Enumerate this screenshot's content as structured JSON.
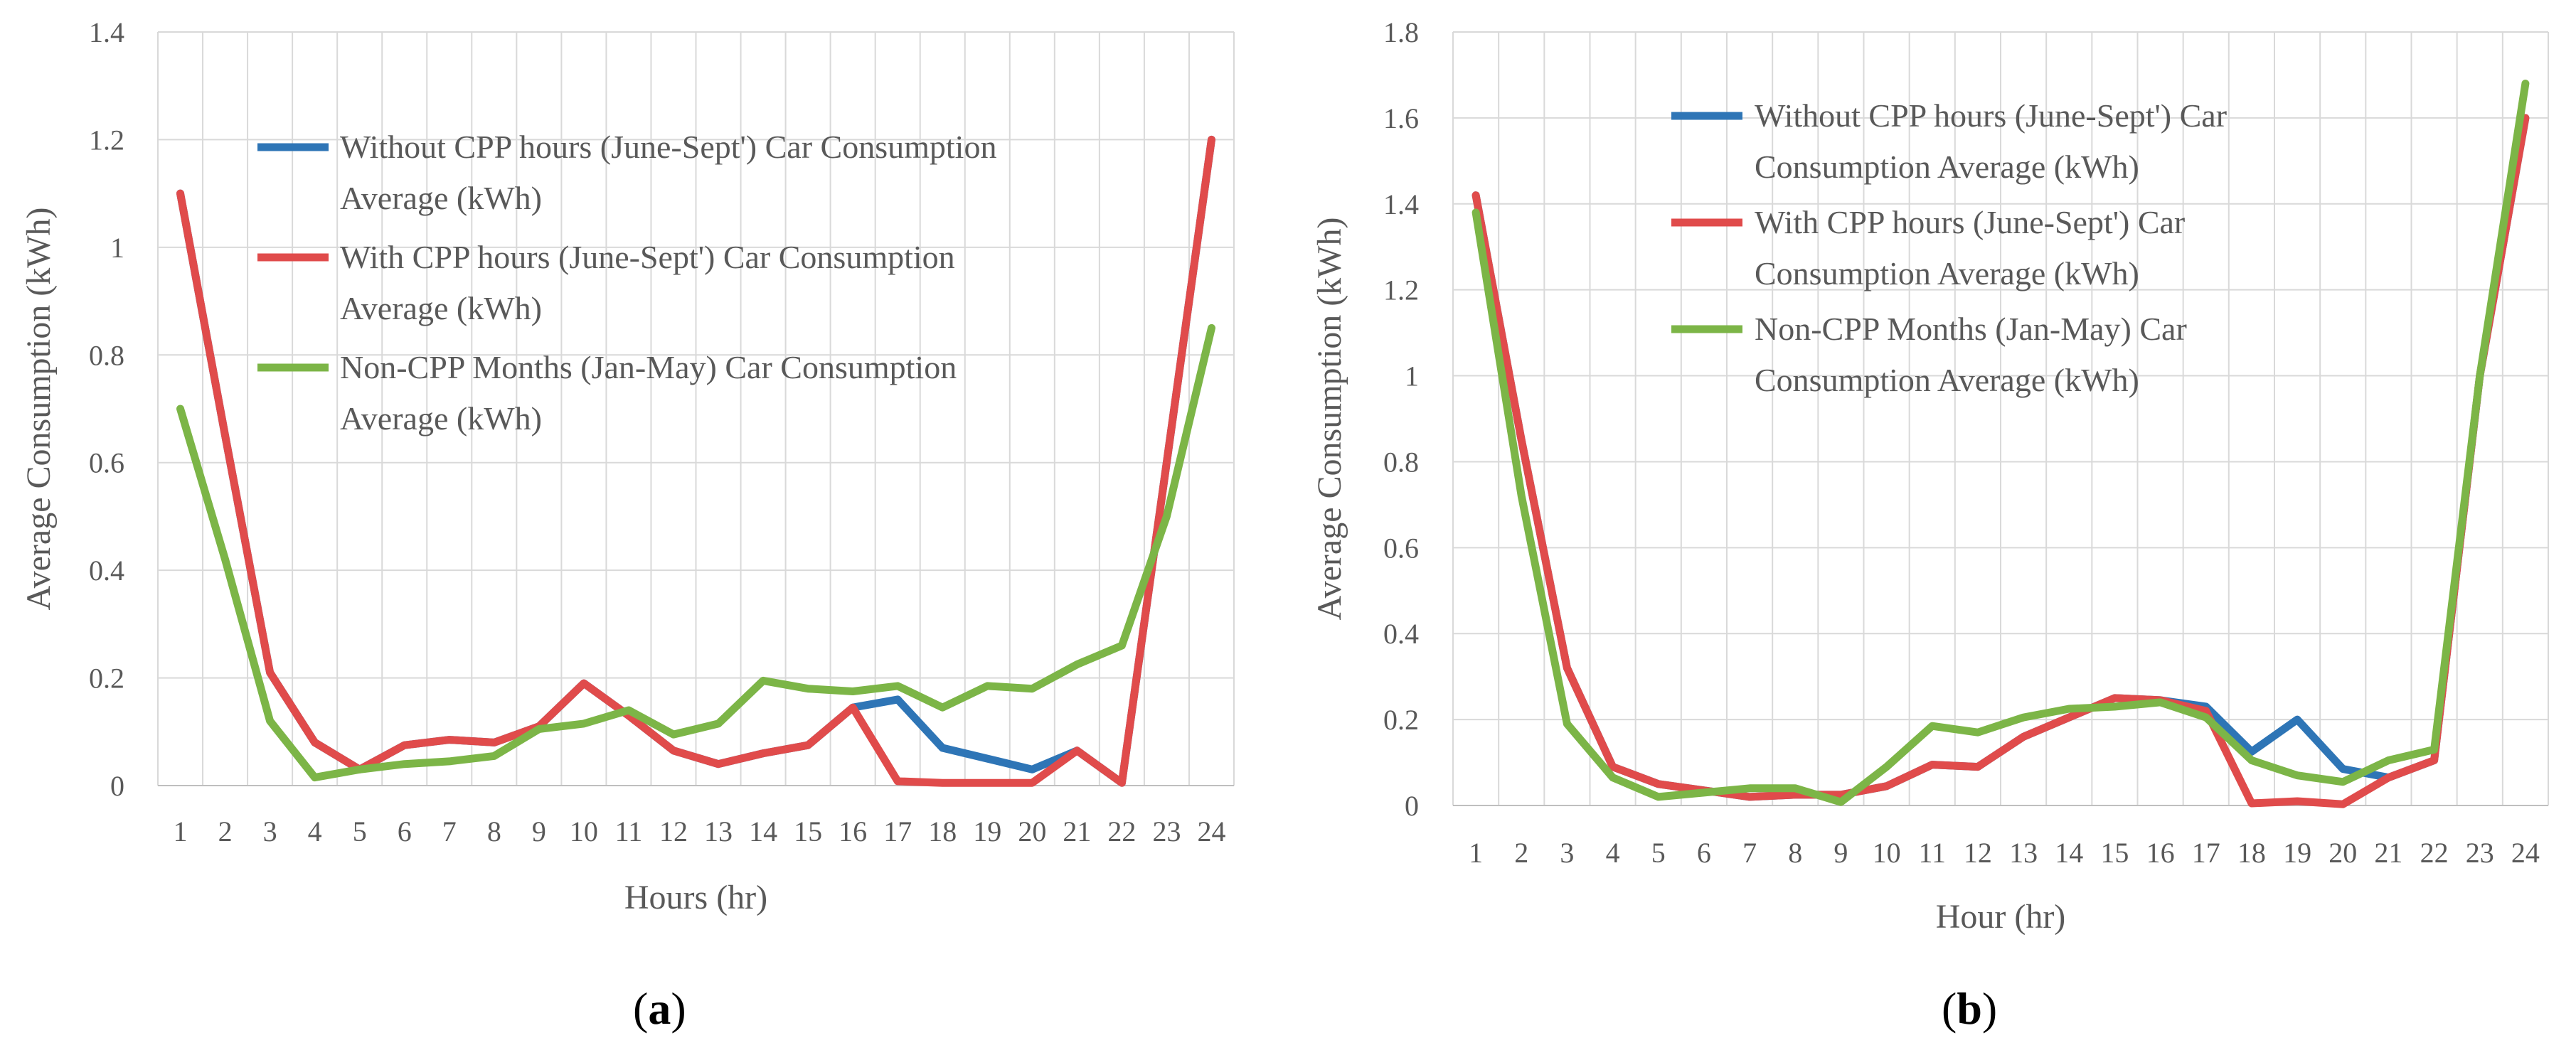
{
  "chart_data": [
    {
      "panel_label": "a",
      "type": "line",
      "xlabel": "Hours (hr)",
      "ylabel": "Average Consumption (kWh)",
      "ylim": [
        0,
        1.4
      ],
      "y_ticks": [
        "0",
        "0.2",
        "0.4",
        "0.6",
        "0.8",
        "1",
        "1.2",
        "1.4"
      ],
      "y_tick_values": [
        0,
        0.2,
        0.4,
        0.6,
        0.8,
        1.0,
        1.2,
        1.4
      ],
      "categories": [
        "1",
        "2",
        "3",
        "4",
        "5",
        "6",
        "7",
        "8",
        "9",
        "10",
        "11",
        "12",
        "13",
        "14",
        "15",
        "16",
        "17",
        "18",
        "19",
        "20",
        "21",
        "22",
        "23",
        "24"
      ],
      "grid": true,
      "legend_position": "top-center",
      "series": [
        {
          "name": "Without CPP hours (June-Sept') Car Consumption Average (kWh)",
          "legend_lines": [
            "Without CPP hours (June-Sept') Car Consumption",
            "Average (kWh)"
          ],
          "color": "#2E75B6",
          "values": [
            1.1,
            0.65,
            0.21,
            0.08,
            0.03,
            0.075,
            0.085,
            0.08,
            0.11,
            0.19,
            0.13,
            0.065,
            0.04,
            0.06,
            0.075,
            0.145,
            0.16,
            0.07,
            0.05,
            0.03,
            0.065,
            0.005,
            0.6,
            1.2
          ]
        },
        {
          "name": "With CPP hours (June-Sept') Car Consumption Average (kWh)",
          "legend_lines": [
            "With CPP hours (June-Sept') Car Consumption",
            "Average (kWh)"
          ],
          "color": "#E04B4B",
          "values": [
            1.1,
            0.65,
            0.21,
            0.08,
            0.03,
            0.075,
            0.085,
            0.08,
            0.11,
            0.19,
            0.13,
            0.065,
            0.04,
            0.06,
            0.075,
            0.145,
            0.008,
            0.005,
            0.005,
            0.005,
            0.065,
            0.005,
            0.6,
            1.2
          ]
        },
        {
          "name": "Non-CPP Months (Jan-May) Car Consumption Average (kWh)",
          "legend_lines": [
            "Non-CPP Months (Jan-May) Car Consumption",
            "Average (kWh)"
          ],
          "color": "#7CB547",
          "values": [
            0.7,
            0.42,
            0.12,
            0.015,
            0.03,
            0.04,
            0.045,
            0.055,
            0.105,
            0.115,
            0.14,
            0.095,
            0.115,
            0.195,
            0.18,
            0.175,
            0.185,
            0.145,
            0.185,
            0.18,
            0.225,
            0.26,
            0.5,
            0.85
          ]
        }
      ]
    },
    {
      "panel_label": "b",
      "type": "line",
      "xlabel": "Hour (hr)",
      "ylabel": "Average Consumption (kWh)",
      "ylim": [
        0,
        1.8
      ],
      "y_ticks": [
        "0",
        "0.2",
        "0.4",
        "0.6",
        "0.8",
        "1",
        "1.2",
        "1.4",
        "1.6",
        "1.8"
      ],
      "y_tick_values": [
        0,
        0.2,
        0.4,
        0.6,
        0.8,
        1.0,
        1.2,
        1.4,
        1.6,
        1.8
      ],
      "categories": [
        "1",
        "2",
        "3",
        "4",
        "5",
        "6",
        "7",
        "8",
        "9",
        "10",
        "11",
        "12",
        "13",
        "14",
        "15",
        "16",
        "17",
        "18",
        "19",
        "20",
        "21",
        "22",
        "23",
        "24"
      ],
      "grid": true,
      "legend_position": "top-center",
      "series": [
        {
          "name": "Without CPP hours (June-Sept') Car Consumption Average (kWh)",
          "legend_lines": [
            "Without CPP hours (June-Sept') Car",
            "Consumption Average (kWh)"
          ],
          "color": "#2E75B6",
          "values": [
            1.42,
            0.85,
            0.32,
            0.09,
            0.05,
            0.035,
            0.02,
            0.025,
            0.025,
            0.045,
            0.095,
            0.09,
            0.16,
            0.205,
            0.25,
            0.245,
            0.23,
            0.125,
            0.2,
            0.085,
            0.065,
            0.105,
            1.0,
            1.6
          ]
        },
        {
          "name": "With CPP hours (June-Sept') Car Consumption Average (kWh)",
          "legend_lines": [
            "With CPP hours (June-Sept') Car",
            "Consumption Average (kWh)"
          ],
          "color": "#E04B4B",
          "values": [
            1.42,
            0.85,
            0.32,
            0.09,
            0.05,
            0.035,
            0.02,
            0.025,
            0.025,
            0.045,
            0.095,
            0.09,
            0.16,
            0.205,
            0.25,
            0.245,
            0.22,
            0.005,
            0.01,
            0.003,
            0.065,
            0.105,
            1.0,
            1.6
          ]
        },
        {
          "name": "Non-CPP Months (Jan-May) Car Consumption Average (kWh)",
          "legend_lines": [
            "Non-CPP Months (Jan-May) Car",
            "Consumption Average (kWh)"
          ],
          "color": "#7CB547",
          "values": [
            1.38,
            0.72,
            0.19,
            0.065,
            0.02,
            0.03,
            0.04,
            0.04,
            0.008,
            0.09,
            0.185,
            0.17,
            0.205,
            0.225,
            0.23,
            0.24,
            0.205,
            0.105,
            0.07,
            0.055,
            0.105,
            0.13,
            1.0,
            1.68
          ]
        }
      ]
    }
  ]
}
